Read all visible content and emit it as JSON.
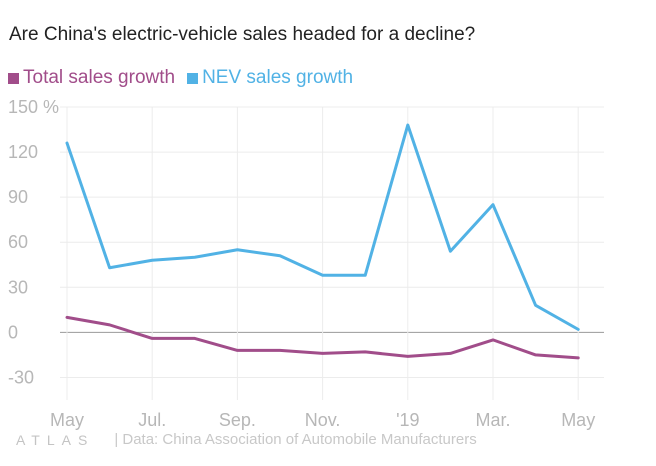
{
  "title": "Are China's electric-vehicle sales headed for a decline?",
  "legend": {
    "total_label": "Total sales growth",
    "nev_label": "NEV sales growth"
  },
  "colors": {
    "total": "#a14d8a",
    "nev": "#51b2e5",
    "grid": "#ececec",
    "zero": "#9a9a9a"
  },
  "footer": {
    "brand": "ATLAS",
    "source": "| Data: China Association of Automobile Manufacturers"
  },
  "chart_data": {
    "type": "line",
    "title": "Are China's electric-vehicle sales headed for a decline?",
    "x_tick_labels": [
      "May",
      "Jul.",
      "Sep.",
      "Nov.",
      "'19",
      "Mar.",
      "May"
    ],
    "x_tick_index": [
      0,
      2,
      4,
      6,
      8,
      10,
      12
    ],
    "y_ticks": [
      {
        "value": 150,
        "label": "150 %"
      },
      {
        "value": 120,
        "label": "120"
      },
      {
        "value": 90,
        "label": "90"
      },
      {
        "value": 60,
        "label": "60"
      },
      {
        "value": 30,
        "label": "30"
      },
      {
        "value": 0,
        "label": "0"
      },
      {
        "value": -30,
        "label": "-30"
      }
    ],
    "ylim": [
      -45,
      150
    ],
    "series": [
      {
        "name": "Total sales growth",
        "key": "total",
        "values": [
          10,
          5,
          -4,
          -4,
          -12,
          -12,
          -14,
          -13,
          -16,
          -14,
          -5,
          -15,
          -17
        ]
      },
      {
        "name": "NEV sales growth",
        "key": "nev",
        "values": [
          126,
          43,
          48,
          50,
          55,
          51,
          38,
          38,
          138,
          54,
          85,
          18,
          2
        ]
      }
    ]
  }
}
